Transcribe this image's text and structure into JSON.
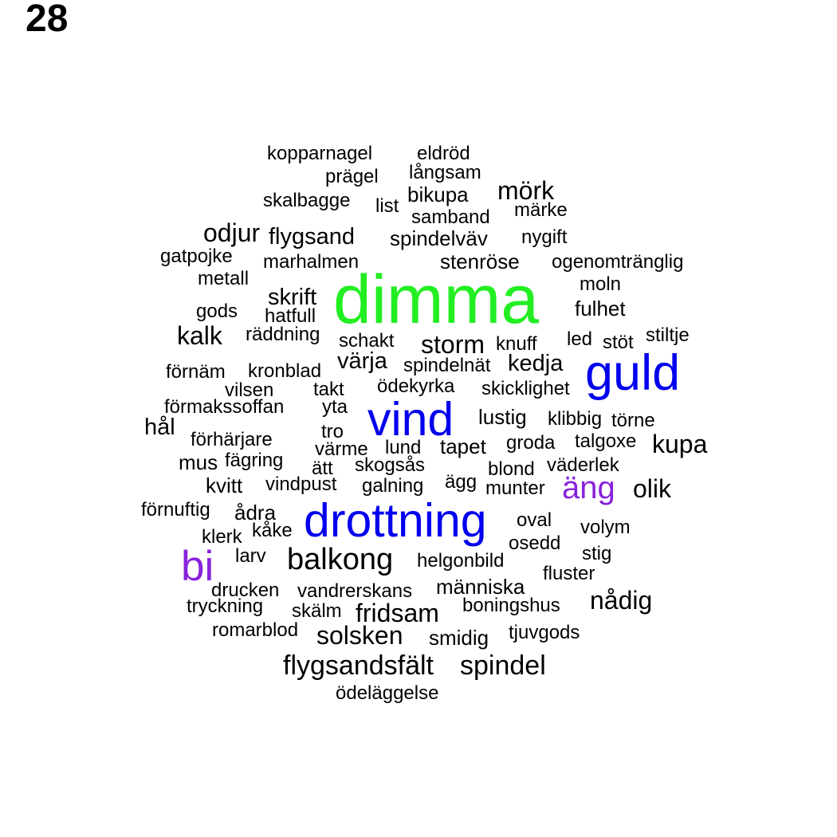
{
  "page_number": "28",
  "colors": {
    "default": "#000000",
    "green": "#22ee22",
    "blue": "#0000ee",
    "purple": "#8822dd"
  },
  "words": [
    {
      "text": "kopparnagel",
      "color": "default"
    },
    {
      "text": "eldröd",
      "color": "default"
    },
    {
      "text": "långsam",
      "color": "default"
    },
    {
      "text": "prägel",
      "color": "default"
    },
    {
      "text": "bikupa",
      "color": "default"
    },
    {
      "text": "mörk",
      "color": "default"
    },
    {
      "text": "skalbagge",
      "color": "default"
    },
    {
      "text": "list",
      "color": "default"
    },
    {
      "text": "samband",
      "color": "default"
    },
    {
      "text": "märke",
      "color": "default"
    },
    {
      "text": "odjur",
      "color": "default"
    },
    {
      "text": "flygsand",
      "color": "default"
    },
    {
      "text": "spindelväv",
      "color": "default"
    },
    {
      "text": "nygift",
      "color": "default"
    },
    {
      "text": "gatpojke",
      "color": "default"
    },
    {
      "text": "marhalmen",
      "color": "default"
    },
    {
      "text": "stenröse",
      "color": "default"
    },
    {
      "text": "ogenomtränglig",
      "color": "default"
    },
    {
      "text": "metall",
      "color": "default"
    },
    {
      "text": "moln",
      "color": "default"
    },
    {
      "text": "dimma",
      "color": "green"
    },
    {
      "text": "skrift",
      "color": "default"
    },
    {
      "text": "fulhet",
      "color": "default"
    },
    {
      "text": "gods",
      "color": "default"
    },
    {
      "text": "hatfull",
      "color": "default"
    },
    {
      "text": "kalk",
      "color": "default"
    },
    {
      "text": "räddning",
      "color": "default"
    },
    {
      "text": "schakt",
      "color": "default"
    },
    {
      "text": "storm",
      "color": "default"
    },
    {
      "text": "knuff",
      "color": "default"
    },
    {
      "text": "led",
      "color": "default"
    },
    {
      "text": "stöt",
      "color": "default"
    },
    {
      "text": "stiltje",
      "color": "default"
    },
    {
      "text": "guld",
      "color": "blue"
    },
    {
      "text": "värja",
      "color": "default"
    },
    {
      "text": "spindelnät",
      "color": "default"
    },
    {
      "text": "kedja",
      "color": "default"
    },
    {
      "text": "förnäm",
      "color": "default"
    },
    {
      "text": "kronblad",
      "color": "default"
    },
    {
      "text": "ödekyrka",
      "color": "default"
    },
    {
      "text": "vilsen",
      "color": "default"
    },
    {
      "text": "takt",
      "color": "default"
    },
    {
      "text": "skicklighet",
      "color": "default"
    },
    {
      "text": "förmakssoffan",
      "color": "default"
    },
    {
      "text": "yta",
      "color": "default"
    },
    {
      "text": "vind",
      "color": "blue"
    },
    {
      "text": "lustig",
      "color": "default"
    },
    {
      "text": "klibbig",
      "color": "default"
    },
    {
      "text": "törne",
      "color": "default"
    },
    {
      "text": "hål",
      "color": "default"
    },
    {
      "text": "tro",
      "color": "default"
    },
    {
      "text": "förhärjare",
      "color": "default"
    },
    {
      "text": "värme",
      "color": "default"
    },
    {
      "text": "lund",
      "color": "default"
    },
    {
      "text": "tapet",
      "color": "default"
    },
    {
      "text": "groda",
      "color": "default"
    },
    {
      "text": "talgoxe",
      "color": "default"
    },
    {
      "text": "kupa",
      "color": "default"
    },
    {
      "text": "mus",
      "color": "default"
    },
    {
      "text": "fägring",
      "color": "default"
    },
    {
      "text": "ätt",
      "color": "default"
    },
    {
      "text": "skogsås",
      "color": "default"
    },
    {
      "text": "blond",
      "color": "default"
    },
    {
      "text": "väderlek",
      "color": "default"
    },
    {
      "text": "kvitt",
      "color": "default"
    },
    {
      "text": "vindpust",
      "color": "default"
    },
    {
      "text": "galning",
      "color": "default"
    },
    {
      "text": "ägg",
      "color": "default"
    },
    {
      "text": "munter",
      "color": "default"
    },
    {
      "text": "äng",
      "color": "purple"
    },
    {
      "text": "olik",
      "color": "default"
    },
    {
      "text": "förnuftig",
      "color": "default"
    },
    {
      "text": "ådra",
      "color": "default"
    },
    {
      "text": "drottning",
      "color": "blue"
    },
    {
      "text": "oval",
      "color": "default"
    },
    {
      "text": "volym",
      "color": "default"
    },
    {
      "text": "kåke",
      "color": "default"
    },
    {
      "text": "klerk",
      "color": "default"
    },
    {
      "text": "osedd",
      "color": "default"
    },
    {
      "text": "bi",
      "color": "purple"
    },
    {
      "text": "larv",
      "color": "default"
    },
    {
      "text": "balkong",
      "color": "default"
    },
    {
      "text": "helgonbild",
      "color": "default"
    },
    {
      "text": "stig",
      "color": "default"
    },
    {
      "text": "fluster",
      "color": "default"
    },
    {
      "text": "drucken",
      "color": "default"
    },
    {
      "text": "vandrerskans",
      "color": "default"
    },
    {
      "text": "människa",
      "color": "default"
    },
    {
      "text": "nådig",
      "color": "default"
    },
    {
      "text": "tryckning",
      "color": "default"
    },
    {
      "text": "skälm",
      "color": "default"
    },
    {
      "text": "fridsam",
      "color": "default"
    },
    {
      "text": "boningshus",
      "color": "default"
    },
    {
      "text": "romarblod",
      "color": "default"
    },
    {
      "text": "solsken",
      "color": "default"
    },
    {
      "text": "smidig",
      "color": "default"
    },
    {
      "text": "tjuvgods",
      "color": "default"
    },
    {
      "text": "flygsandsfält",
      "color": "default"
    },
    {
      "text": "spindel",
      "color": "default"
    },
    {
      "text": "ödeläggelse",
      "color": "default"
    }
  ]
}
